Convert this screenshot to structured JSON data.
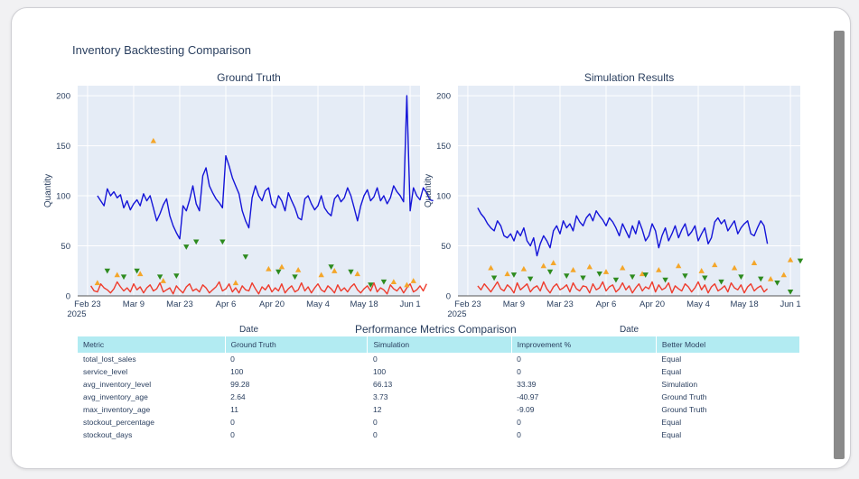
{
  "page_title": "Inventory Backtesting Comparison",
  "colors": {
    "ground_truth_line": "#1414d8",
    "simulation_line": "#1414d8",
    "red_series": "#ef3b2c",
    "orange_markers": "#f4a62a",
    "green_markers": "#2e8b1f",
    "plot_bg": "#e5ecf6",
    "table_header": "#b2ebf2"
  },
  "chart_data": [
    {
      "type": "line",
      "title": "Ground Truth",
      "xlabel": "Date",
      "ylabel": "Quantity",
      "ylim": [
        0,
        210
      ],
      "yticks": [
        0,
        50,
        100,
        150,
        200
      ],
      "xlim": [
        "2025-02-20",
        "2025-06-04"
      ],
      "xtick_labels": [
        "Feb 23\n2025",
        "Mar 9",
        "Mar 23",
        "Apr 6",
        "Apr 20",
        "May 4",
        "May 18",
        "Jun 1"
      ],
      "xtick_dates": [
        "2025-02-23",
        "2025-03-09",
        "2025-03-23",
        "2025-04-06",
        "2025-04-20",
        "2025-05-04",
        "2025-05-18",
        "2025-06-01"
      ],
      "series": [
        {
          "kind": "line",
          "color": "blue",
          "start_date": "2025-02-26",
          "values": [
            100,
            95,
            90,
            107,
            100,
            104,
            98,
            101,
            88,
            95,
            86,
            92,
            96,
            90,
            102,
            95,
            100,
            88,
            75,
            82,
            91,
            97,
            80,
            70,
            63,
            57,
            90,
            85,
            96,
            110,
            92,
            85,
            120,
            128,
            110,
            103,
            97,
            93,
            88,
            140,
            130,
            118,
            110,
            102,
            85,
            75,
            68,
            98,
            110,
            100,
            95,
            105,
            108,
            92,
            88,
            100,
            95,
            85,
            103,
            95,
            88,
            78,
            76,
            97,
            100,
            92,
            86,
            90,
            100,
            88,
            83,
            80,
            97,
            101,
            94,
            98,
            108,
            100,
            88,
            75,
            90,
            100,
            106,
            95,
            99,
            108,
            95,
            100,
            92,
            98,
            110,
            104,
            100,
            94,
            200,
            85,
            108,
            100,
            96,
            108,
            103,
            96,
            95
          ]
        },
        {
          "kind": "line",
          "color": "red",
          "start_date": "2025-02-24",
          "values": [
            10,
            5,
            4,
            12,
            8,
            6,
            3,
            7,
            14,
            9,
            5,
            8,
            4,
            12,
            6,
            9,
            3,
            8,
            11,
            5,
            7,
            13,
            4,
            6,
            8,
            2,
            10,
            6,
            3,
            9,
            12,
            5,
            7,
            4,
            11,
            8,
            3,
            6,
            9,
            14,
            5,
            7,
            12,
            4,
            8,
            3,
            10,
            6,
            5,
            13,
            7,
            2,
            9,
            6,
            11,
            4,
            8,
            5,
            12,
            3,
            7,
            10,
            4,
            6,
            13,
            5,
            9,
            3,
            8,
            12,
            6,
            4,
            10,
            7,
            3,
            11,
            5,
            8,
            4,
            9,
            12,
            6,
            3,
            7,
            10,
            5,
            13,
            4,
            8,
            6,
            2,
            11,
            7,
            5,
            9,
            3,
            8,
            12,
            4,
            6,
            10,
            5,
            12
          ]
        },
        {
          "kind": "scatter",
          "marker": "triangle-up",
          "color": "orange",
          "points": [
            [
              "2025-02-26",
              13
            ],
            [
              "2025-03-04",
              21
            ],
            [
              "2025-03-11",
              22
            ],
            [
              "2025-03-15",
              155
            ],
            [
              "2025-03-18",
              15
            ],
            [
              "2025-04-09",
              13
            ],
            [
              "2025-04-19",
              27
            ],
            [
              "2025-04-23",
              29
            ],
            [
              "2025-04-28",
              26
            ],
            [
              "2025-05-05",
              21
            ],
            [
              "2025-05-09",
              25
            ],
            [
              "2025-05-16",
              22
            ],
            [
              "2025-05-27",
              14
            ],
            [
              "2025-05-31",
              11
            ],
            [
              "2025-06-02",
              15
            ]
          ]
        },
        {
          "kind": "scatter",
          "marker": "triangle-down",
          "color": "green",
          "points": [
            [
              "2025-03-01",
              25
            ],
            [
              "2025-03-06",
              19
            ],
            [
              "2025-03-10",
              25
            ],
            [
              "2025-03-17",
              19
            ],
            [
              "2025-03-22",
              20
            ],
            [
              "2025-03-25",
              49
            ],
            [
              "2025-03-28",
              54
            ],
            [
              "2025-04-05",
              54
            ],
            [
              "2025-04-12",
              39
            ],
            [
              "2025-04-22",
              24
            ],
            [
              "2025-04-27",
              19
            ],
            [
              "2025-05-08",
              29
            ],
            [
              "2025-05-14",
              24
            ],
            [
              "2025-05-20",
              11
            ],
            [
              "2025-05-24",
              14
            ]
          ]
        }
      ]
    },
    {
      "type": "line",
      "title": "Simulation Results",
      "xlabel": "Date",
      "ylabel": "Quantity",
      "ylim": [
        0,
        210
      ],
      "yticks": [
        0,
        50,
        100,
        150,
        200
      ],
      "xlim": [
        "2025-02-20",
        "2025-06-04"
      ],
      "xtick_labels": [
        "Feb 23\n2025",
        "Mar 9",
        "Mar 23",
        "Apr 6",
        "Apr 20",
        "May 4",
        "May 18",
        "Jun 1"
      ],
      "xtick_dates": [
        "2025-02-23",
        "2025-03-09",
        "2025-03-23",
        "2025-04-06",
        "2025-04-20",
        "2025-05-04",
        "2025-05-18",
        "2025-06-01"
      ],
      "series": [
        {
          "kind": "line",
          "color": "blue",
          "start_date": "2025-02-26",
          "values": [
            88,
            82,
            78,
            72,
            68,
            65,
            75,
            70,
            60,
            58,
            62,
            55,
            65,
            60,
            68,
            55,
            50,
            58,
            40,
            52,
            60,
            55,
            48,
            65,
            70,
            62,
            75,
            68,
            72,
            65,
            80,
            74,
            70,
            78,
            82,
            75,
            85,
            80,
            76,
            70,
            78,
            74,
            68,
            60,
            72,
            65,
            58,
            70,
            62,
            75,
            66,
            55,
            60,
            72,
            65,
            48,
            60,
            68,
            55,
            62,
            70,
            58,
            66,
            72,
            60,
            64,
            70,
            55,
            62,
            68,
            52,
            58,
            74,
            78,
            72,
            76,
            65,
            70,
            75,
            62,
            68,
            72,
            75,
            62,
            60,
            68,
            75,
            70,
            52
          ]
        },
        {
          "kind": "line",
          "color": "red",
          "start_date": "2025-02-26",
          "values": [
            10,
            6,
            12,
            8,
            4,
            9,
            14,
            7,
            5,
            11,
            8,
            3,
            13,
            6,
            9,
            12,
            4,
            8,
            10,
            5,
            14,
            7,
            3,
            9,
            12,
            6,
            8,
            11,
            4,
            13,
            7,
            5,
            10,
            9,
            3,
            12,
            6,
            8,
            14,
            5,
            9,
            11,
            4,
            7,
            13,
            6,
            10,
            3,
            8,
            12,
            5,
            9,
            7,
            14,
            4,
            11,
            6,
            8,
            13,
            3,
            10,
            7,
            5,
            12,
            9,
            4,
            8,
            14,
            6,
            11,
            3,
            9,
            12,
            5,
            7,
            10,
            4,
            13,
            8,
            6,
            11,
            3,
            9,
            12,
            5,
            8,
            10,
            4,
            7
          ]
        },
        {
          "kind": "scatter",
          "marker": "triangle-up",
          "color": "orange",
          "points": [
            [
              "2025-03-02",
              28
            ],
            [
              "2025-03-07",
              22
            ],
            [
              "2025-03-12",
              27
            ],
            [
              "2025-03-18",
              30
            ],
            [
              "2025-03-21",
              33
            ],
            [
              "2025-03-27",
              26
            ],
            [
              "2025-04-01",
              29
            ],
            [
              "2025-04-06",
              24
            ],
            [
              "2025-04-11",
              28
            ],
            [
              "2025-04-17",
              22
            ],
            [
              "2025-04-22",
              26
            ],
            [
              "2025-04-28",
              30
            ],
            [
              "2025-05-05",
              25
            ],
            [
              "2025-05-09",
              31
            ],
            [
              "2025-05-15",
              28
            ],
            [
              "2025-05-21",
              33
            ],
            [
              "2025-05-26",
              17
            ],
            [
              "2025-05-30",
              21
            ],
            [
              "2025-06-01",
              36
            ]
          ]
        },
        {
          "kind": "scatter",
          "marker": "triangle-down",
          "color": "green",
          "points": [
            [
              "2025-03-03",
              18
            ],
            [
              "2025-03-09",
              21
            ],
            [
              "2025-03-14",
              17
            ],
            [
              "2025-03-20",
              24
            ],
            [
              "2025-03-25",
              20
            ],
            [
              "2025-03-30",
              18
            ],
            [
              "2025-04-04",
              22
            ],
            [
              "2025-04-09",
              16
            ],
            [
              "2025-04-14",
              19
            ],
            [
              "2025-04-18",
              21
            ],
            [
              "2025-04-24",
              16
            ],
            [
              "2025-04-30",
              20
            ],
            [
              "2025-05-06",
              18
            ],
            [
              "2025-05-11",
              14
            ],
            [
              "2025-05-17",
              19
            ],
            [
              "2025-05-23",
              17
            ],
            [
              "2025-05-28",
              13
            ],
            [
              "2025-06-01",
              4
            ],
            [
              "2025-06-04",
              35
            ]
          ]
        }
      ]
    }
  ],
  "table": {
    "title": "Performance Metrics Comparison",
    "columns": [
      "Metric",
      "Ground Truth",
      "Simulation",
      "Improvement %",
      "Better Model"
    ],
    "rows": [
      [
        "total_lost_sales",
        "0",
        "0",
        "0",
        "Equal"
      ],
      [
        "service_level",
        "100",
        "100",
        "0",
        "Equal"
      ],
      [
        "avg_inventory_level",
        "99.28",
        "66.13",
        "33.39",
        "Simulation"
      ],
      [
        "avg_inventory_age",
        "2.64",
        "3.73",
        "-40.97",
        "Ground Truth"
      ],
      [
        "max_inventory_age",
        "11",
        "12",
        "-9.09",
        "Ground Truth"
      ],
      [
        "stockout_percentage",
        "0",
        "0",
        "0",
        "Equal"
      ],
      [
        "stockout_days",
        "0",
        "0",
        "0",
        "Equal"
      ]
    ]
  }
}
